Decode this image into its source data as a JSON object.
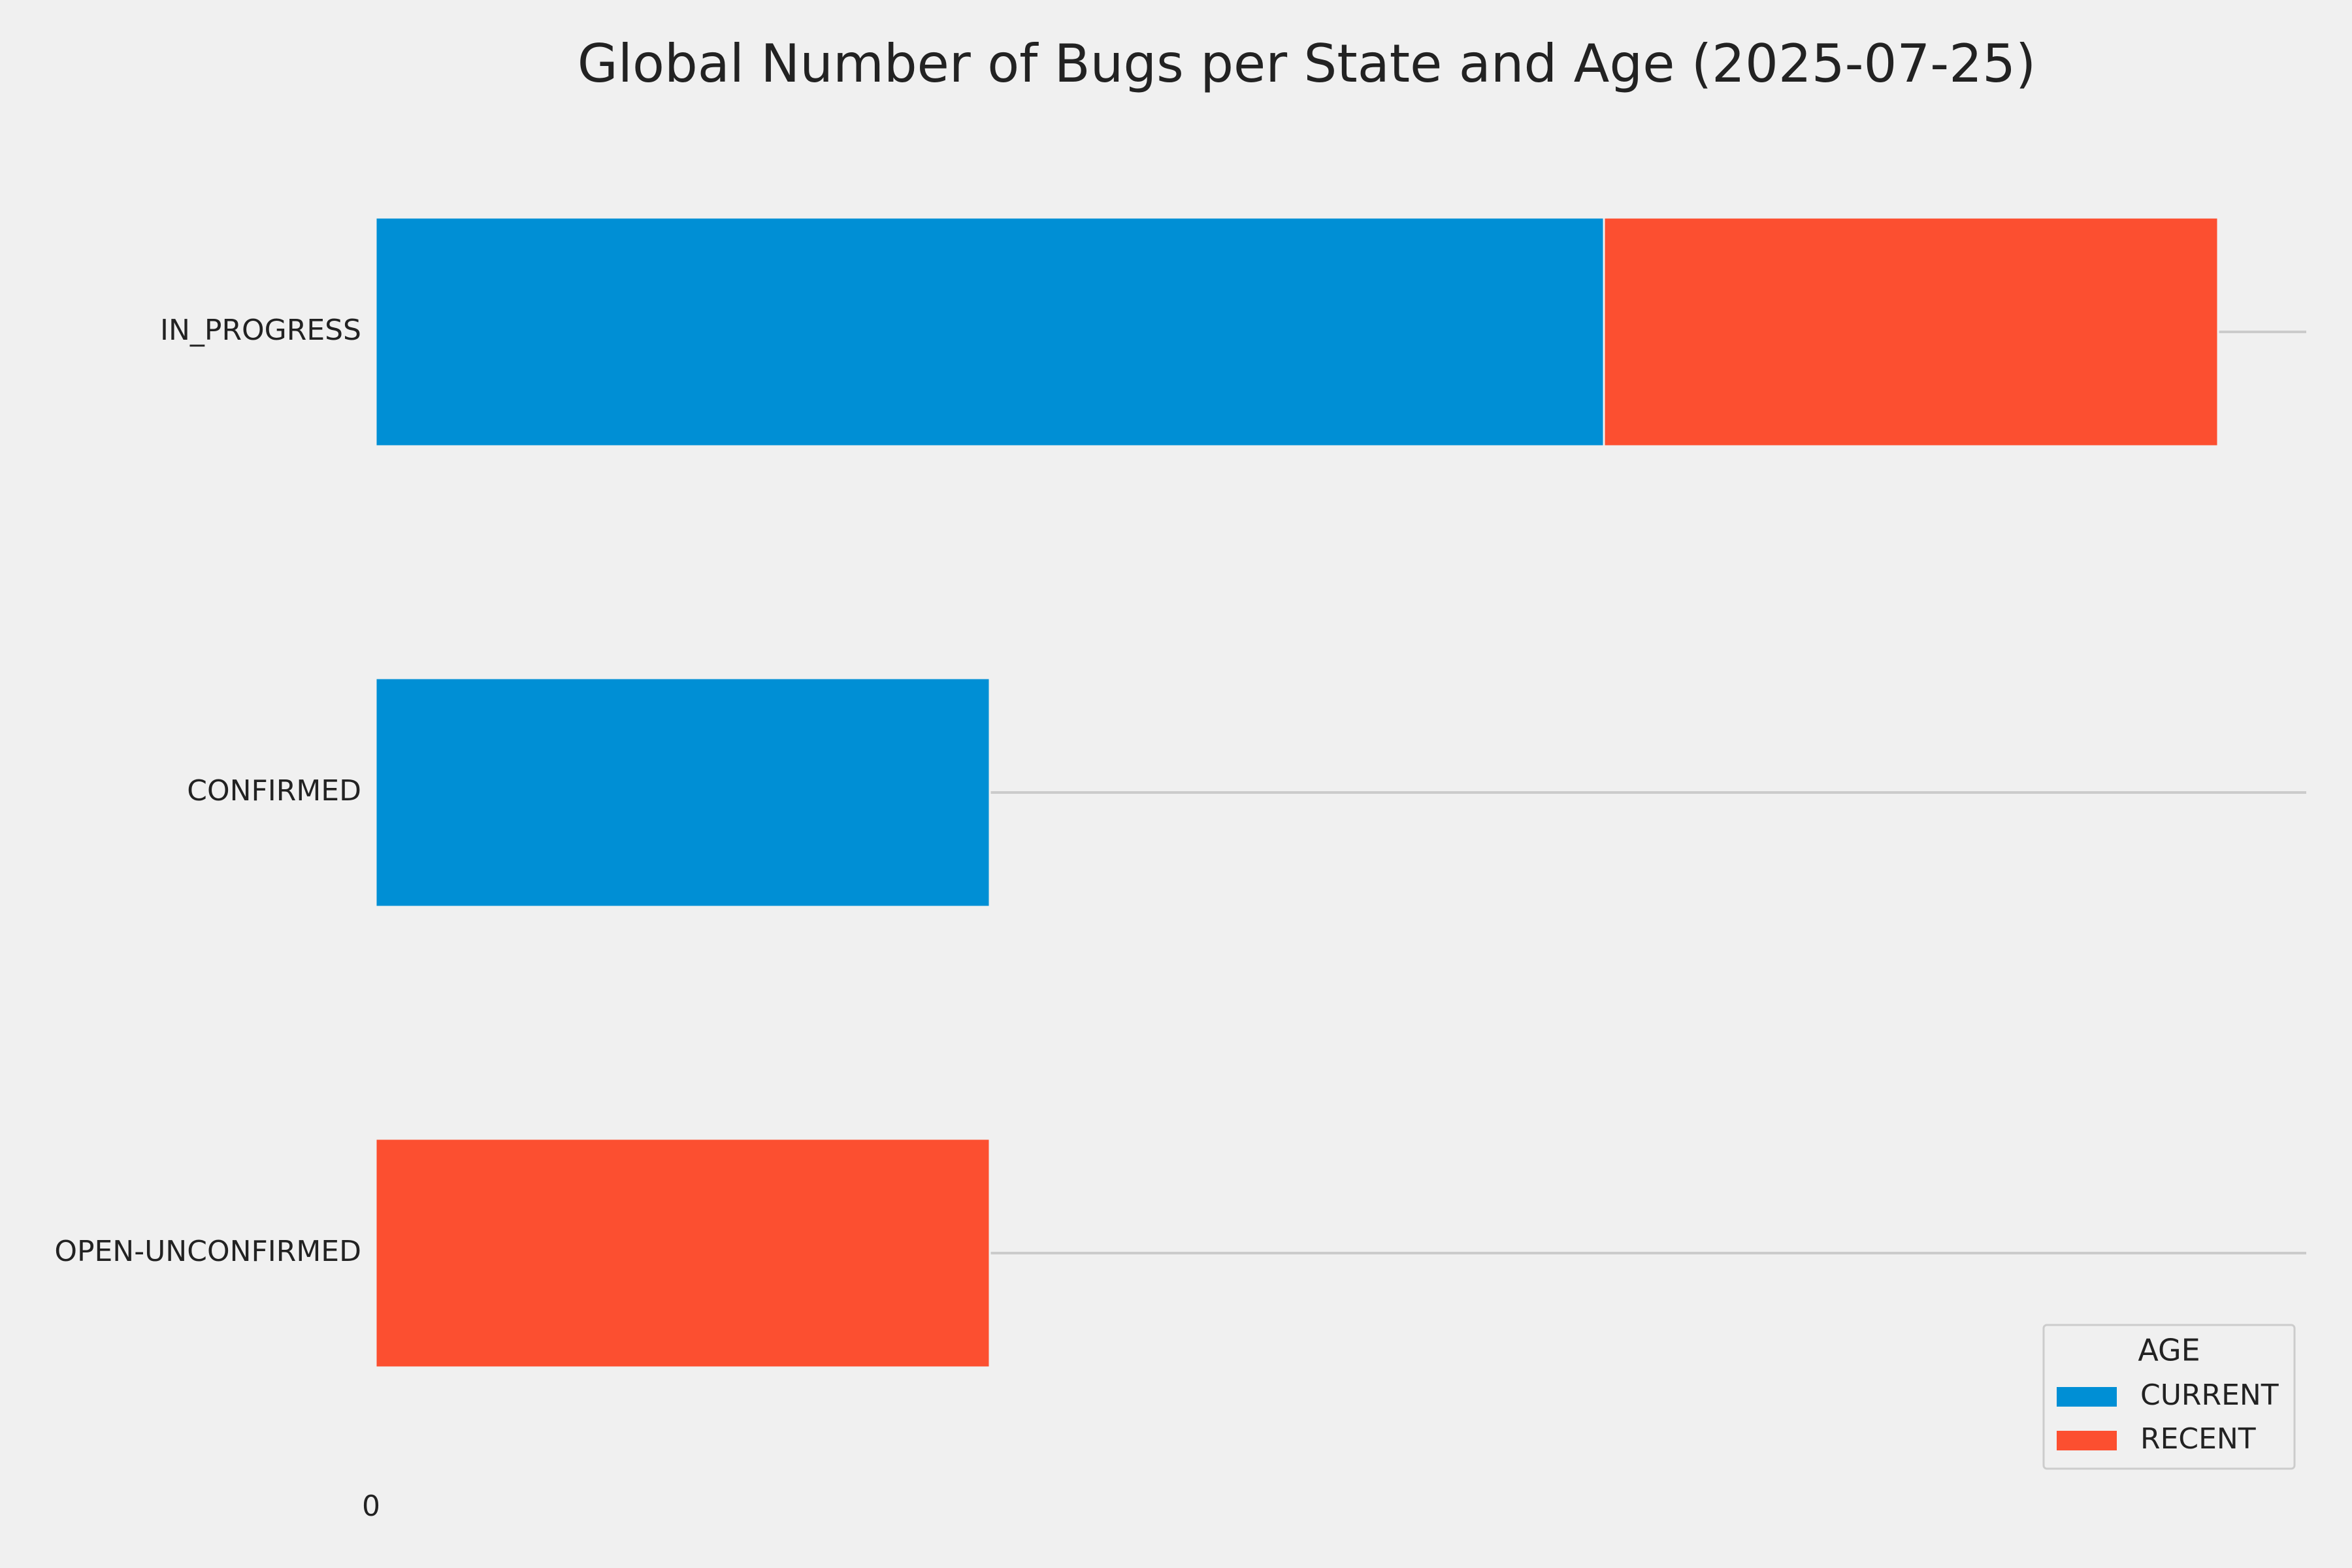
{
  "chart_data": {
    "type": "bar",
    "orientation": "horizontal",
    "stacked": true,
    "title": "Global Number of Bugs per State and Age (2025-07-25)",
    "xlabel": "",
    "ylabel": "",
    "categories": [
      "IN_PROGRESS",
      "CONFIRMED",
      "OPEN-UNCONFIRMED"
    ],
    "series": [
      {
        "name": "CURRENT",
        "values": [
          2,
          1,
          0
        ],
        "color": "#008fd5"
      },
      {
        "name": "RECENT",
        "values": [
          1,
          0,
          1
        ],
        "color": "#fc4f30"
      }
    ],
    "xlim": [
      0,
      3.15
    ],
    "x_ticks": [
      "0"
    ],
    "grid": "horizontal",
    "legend": {
      "title": "AGE",
      "position": "lower-right"
    },
    "background": "#f0f0f0",
    "grid_color": "#cbcbcb",
    "text_color": "#222222"
  }
}
